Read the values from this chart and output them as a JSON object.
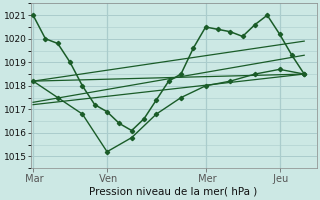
{
  "bg_color": "#cce8e4",
  "grid_color": "#aacccc",
  "line_color": "#1a5c28",
  "title": "Pression niveau de la mer( hPa )",
  "ylim": [
    1014.5,
    1021.5
  ],
  "yticks": [
    1015,
    1016,
    1017,
    1018,
    1019,
    1020,
    1021
  ],
  "xtick_labels": [
    " Mar",
    " Ven",
    " Mer",
    " Jeu"
  ],
  "xtick_positions": [
    0,
    3,
    7,
    10
  ],
  "vline_positions": [
    0,
    3,
    7,
    10
  ],
  "xlim": [
    -0.1,
    11.5
  ],
  "main_x": [
    0,
    0.5,
    1,
    1.5,
    2,
    2.5,
    3,
    3.5,
    4,
    4.5,
    5,
    5.5,
    6,
    6.5,
    7,
    7.5,
    8,
    8.5,
    9,
    9.5,
    10,
    10.5,
    11
  ],
  "main_y": [
    1021,
    1020,
    1019.8,
    1019.0,
    1018.0,
    1017.2,
    1016.9,
    1016.4,
    1016.1,
    1016.6,
    1017.4,
    1018.2,
    1018.5,
    1019.6,
    1020.5,
    1020.4,
    1020.3,
    1020.1,
    1020.6,
    1021.0,
    1020.2,
    1019.3,
    1018.5
  ],
  "low_x": [
    0,
    1,
    2,
    3,
    4,
    5,
    6,
    7,
    8,
    9,
    10,
    11
  ],
  "low_y": [
    1018.2,
    1017.5,
    1016.8,
    1015.2,
    1015.8,
    1016.8,
    1017.5,
    1018.0,
    1018.2,
    1018.5,
    1018.7,
    1018.5
  ],
  "trend1_x": [
    0,
    11
  ],
  "trend1_y": [
    1018.2,
    1019.9
  ],
  "trend2_x": [
    0,
    11
  ],
  "trend2_y": [
    1017.3,
    1019.3
  ],
  "trend3_x": [
    0,
    11
  ],
  "trend3_y": [
    1017.2,
    1018.5
  ],
  "trend4_x": [
    0,
    11
  ],
  "trend4_y": [
    1018.2,
    1018.5
  ]
}
